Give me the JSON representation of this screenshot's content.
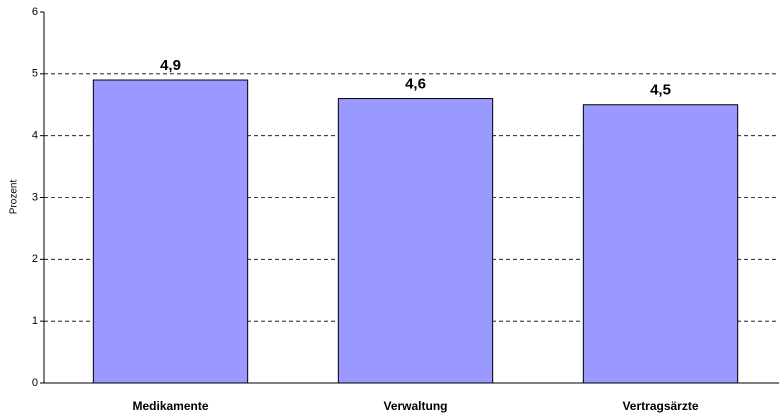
{
  "chart_data": {
    "type": "bar",
    "y_label": "Prozent",
    "categories": [
      "Medikamente",
      "Verwaltung",
      "Vertragsärzte"
    ],
    "values": [
      4.9,
      4.6,
      4.5
    ],
    "value_labels": [
      "4,9",
      "4,6",
      "4,5"
    ],
    "color": "#9999ff",
    "ylim": [
      0,
      6
    ],
    "yticks": [
      0,
      1,
      2,
      3,
      4,
      5,
      6
    ],
    "grid": true
  }
}
